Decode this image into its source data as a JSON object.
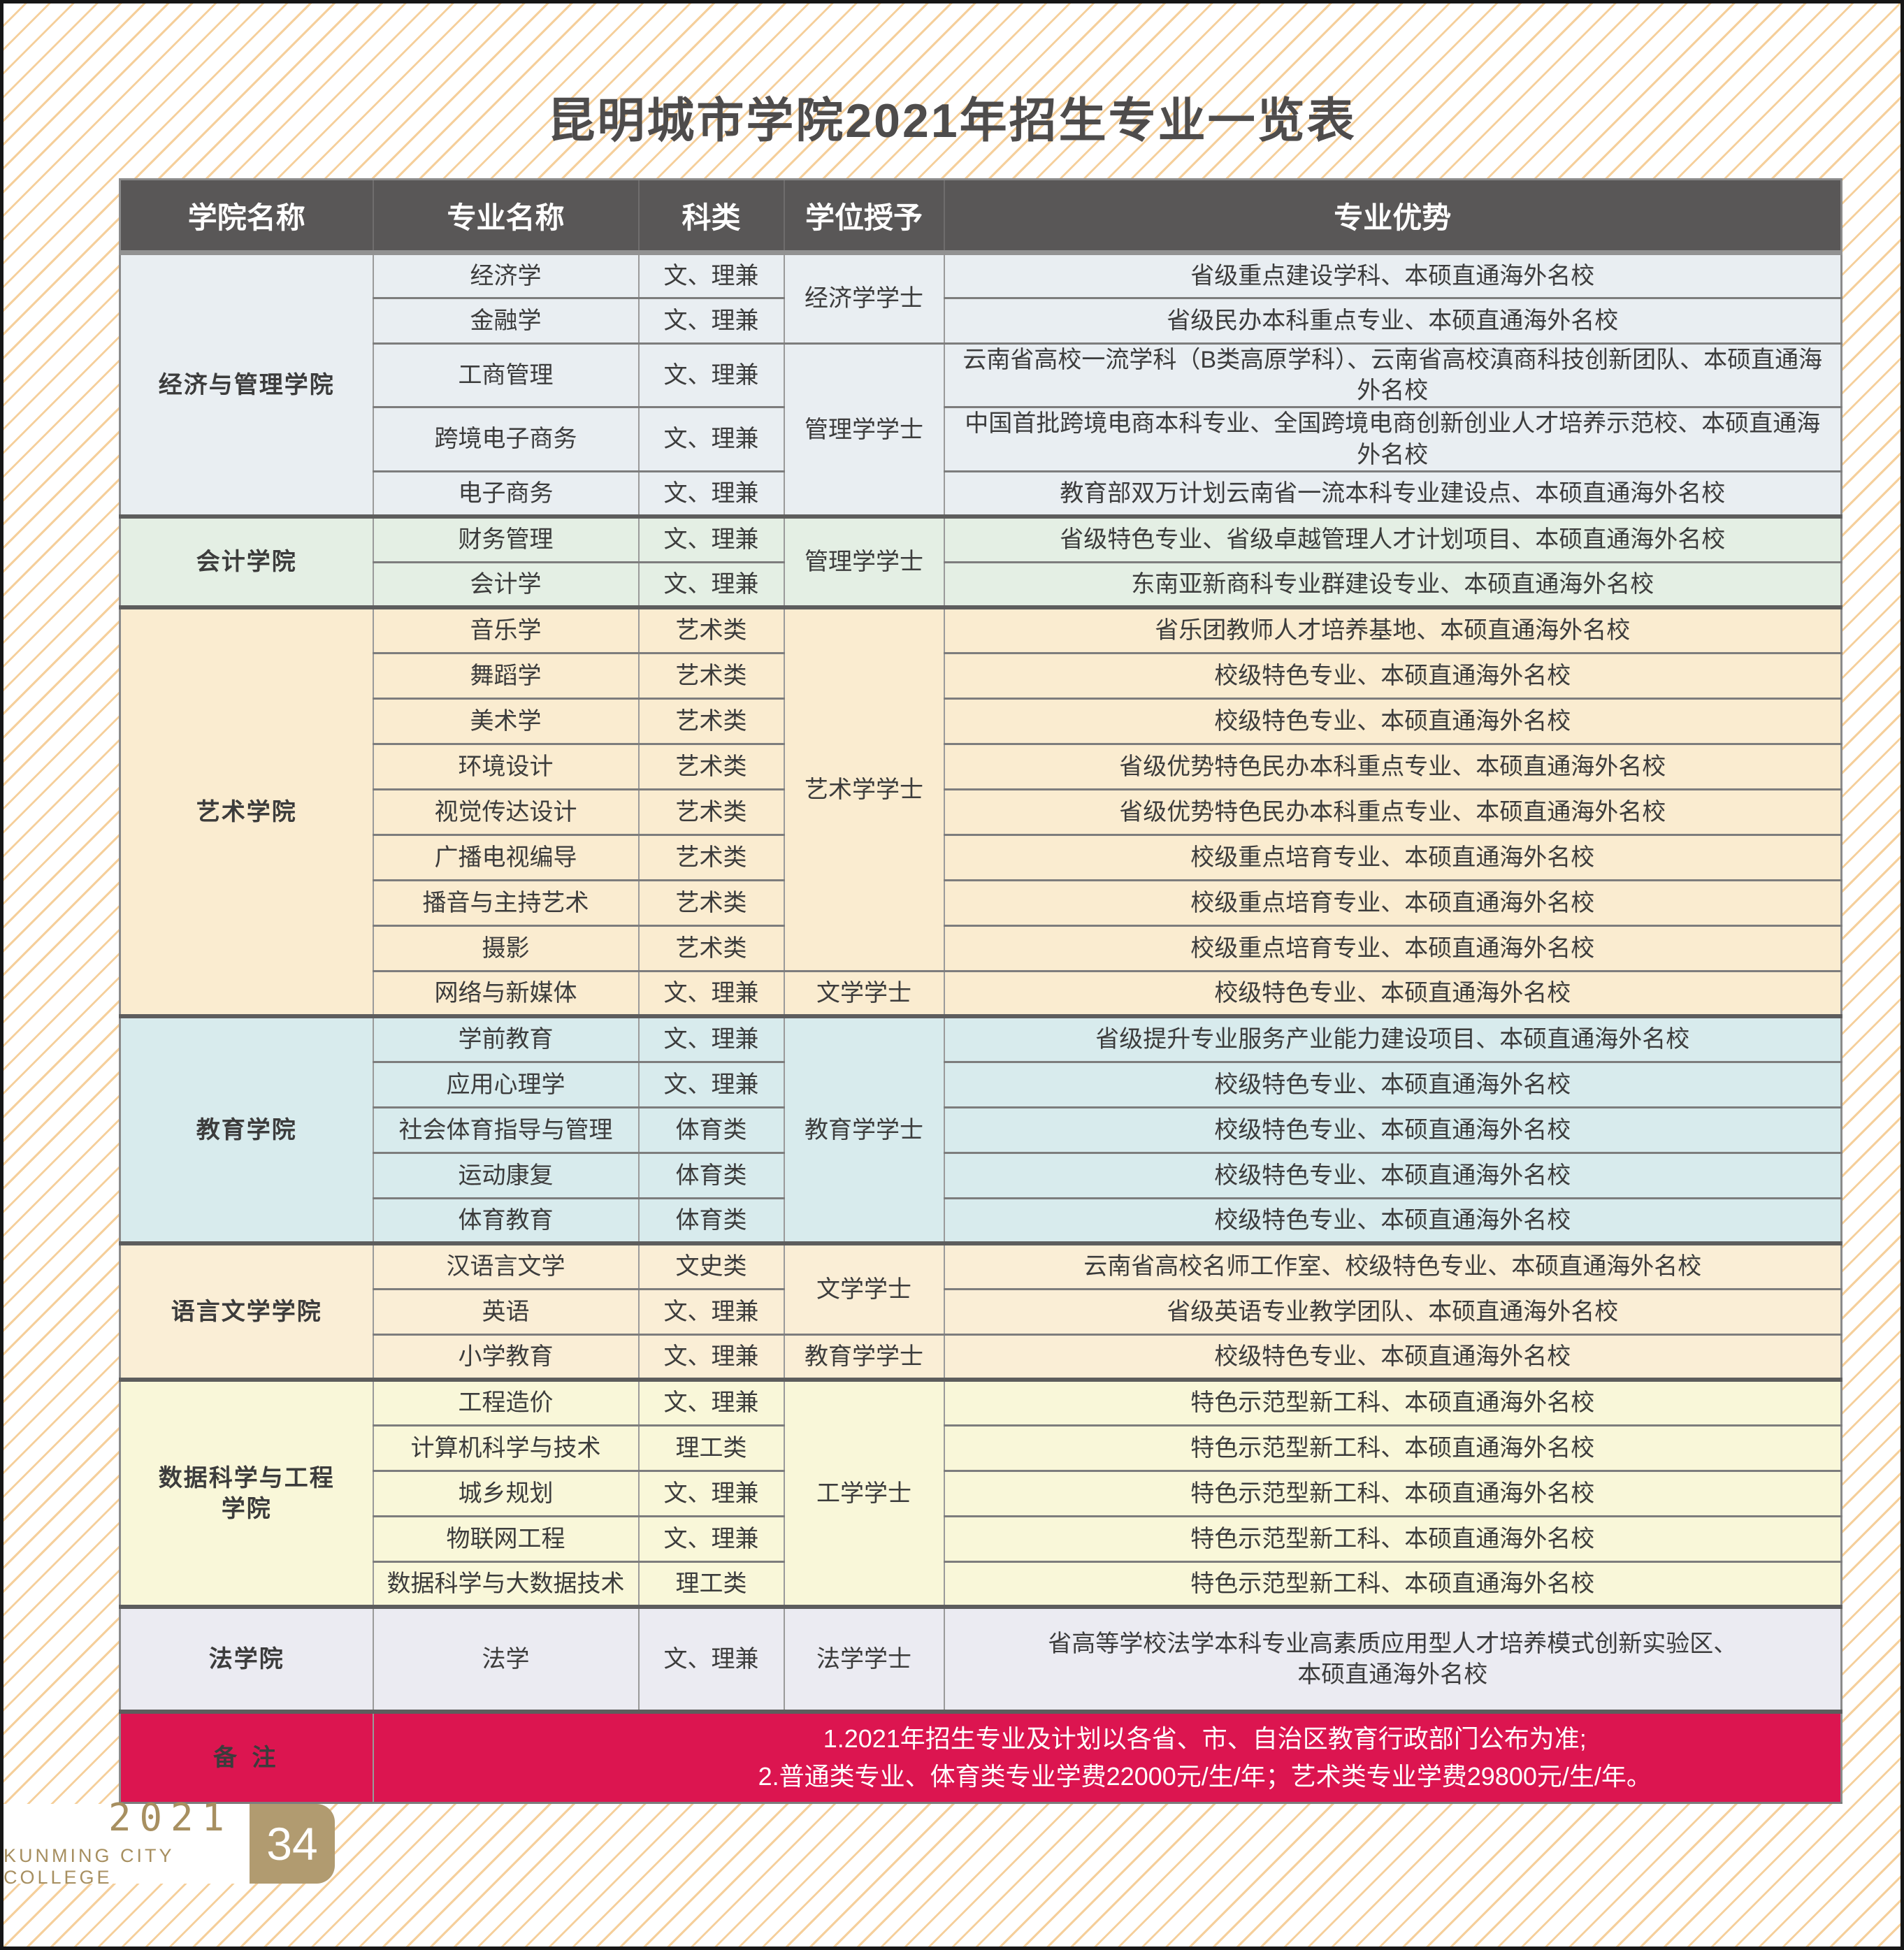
{
  "page": {
    "title": "昆明城市学院2021年招生专业一览表"
  },
  "colors": {
    "header_bg": "#595757",
    "note_bg": "#dc1550",
    "badge_bg": "#b19b70",
    "brand_text": "#a78f60",
    "title_text": "#4e4c4c"
  },
  "table": {
    "headers": [
      "学院名称",
      "专业名称",
      "科类",
      "学位授予",
      "专业优势"
    ],
    "sections": [
      {
        "college": "经济与管理学院",
        "color": "#e9eef2",
        "degrees": [
          {
            "label": "经济学学士",
            "span": 2
          },
          {
            "label": "管理学学士",
            "span": 3
          }
        ],
        "rows": [
          {
            "major": "经济学",
            "category": "文、理兼",
            "advantage": "省级重点建设学科、本硕直通海外名校"
          },
          {
            "major": "金融学",
            "category": "文、理兼",
            "advantage": "省级民办本科重点专业、本硕直通海外名校"
          },
          {
            "major": "工商管理",
            "category": "文、理兼",
            "advantage": "云南省高校一流学科（B类高原学科）、云南省高校滇商科技创新团队、本硕直通海外名校"
          },
          {
            "major": "跨境电子商务",
            "category": "文、理兼",
            "advantage": "中国首批跨境电商本科专业、全国跨境电商创新创业人才培养示范校、本硕直通海外名校"
          },
          {
            "major": "电子商务",
            "category": "文、理兼",
            "advantage": "教育部双万计划云南省一流本科专业建设点、本硕直通海外名校"
          }
        ]
      },
      {
        "college": "会计学院",
        "color": "#e4efe4",
        "degrees": [
          {
            "label": "管理学学士",
            "span": 2
          }
        ],
        "rows": [
          {
            "major": "财务管理",
            "category": "文、理兼",
            "advantage": "省级特色专业、省级卓越管理人才计划项目、本硕直通海外名校"
          },
          {
            "major": "会计学",
            "category": "文、理兼",
            "advantage": "东南亚新商科专业群建设专业、本硕直通海外名校"
          }
        ]
      },
      {
        "college": "艺术学院",
        "color": "#faecd0",
        "degrees": [
          {
            "label": "艺术学学士",
            "span": 8
          },
          {
            "label": "文学学士",
            "span": 1
          }
        ],
        "rows": [
          {
            "major": "音乐学",
            "category": "艺术类",
            "advantage": "省乐团教师人才培养基地、本硕直通海外名校"
          },
          {
            "major": "舞蹈学",
            "category": "艺术类",
            "advantage": "校级特色专业、本硕直通海外名校"
          },
          {
            "major": "美术学",
            "category": "艺术类",
            "advantage": "校级特色专业、本硕直通海外名校"
          },
          {
            "major": "环境设计",
            "category": "艺术类",
            "advantage": "省级优势特色民办本科重点专业、本硕直通海外名校"
          },
          {
            "major": "视觉传达设计",
            "category": "艺术类",
            "advantage": "省级优势特色民办本科重点专业、本硕直通海外名校"
          },
          {
            "major": "广播电视编导",
            "category": "艺术类",
            "advantage": "校级重点培育专业、本硕直通海外名校"
          },
          {
            "major": "播音与主持艺术",
            "category": "艺术类",
            "advantage": "校级重点培育专业、本硕直通海外名校"
          },
          {
            "major": "摄影",
            "category": "艺术类",
            "advantage": "校级重点培育专业、本硕直通海外名校"
          },
          {
            "major": "网络与新媒体",
            "category": "文、理兼",
            "advantage": "校级特色专业、本硕直通海外名校"
          }
        ]
      },
      {
        "college": "教育学院",
        "color": "#d8ebed",
        "degrees": [
          {
            "label": "教育学学士",
            "span": 5
          }
        ],
        "rows": [
          {
            "major": "学前教育",
            "category": "文、理兼",
            "advantage": "省级提升专业服务产业能力建设项目、本硕直通海外名校"
          },
          {
            "major": "应用心理学",
            "category": "文、理兼",
            "advantage": "校级特色专业、本硕直通海外名校"
          },
          {
            "major": "社会体育指导与管理",
            "category": "体育类",
            "advantage": "校级特色专业、本硕直通海外名校"
          },
          {
            "major": "运动康复",
            "category": "体育类",
            "advantage": "校级特色专业、本硕直通海外名校"
          },
          {
            "major": "体育教育",
            "category": "体育类",
            "advantage": "校级特色专业、本硕直通海外名校"
          }
        ]
      },
      {
        "college": "语言文学学院",
        "color": "#faeed6",
        "degrees": [
          {
            "label": "文学学士",
            "span": 2
          },
          {
            "label": "教育学学士",
            "span": 1
          }
        ],
        "rows": [
          {
            "major": "汉语言文学",
            "category": "文史类",
            "advantage": "云南省高校名师工作室、校级特色专业、本硕直通海外名校"
          },
          {
            "major": "英语",
            "category": "文、理兼",
            "advantage": "省级英语专业教学团队、本硕直通海外名校"
          },
          {
            "major": "小学教育",
            "category": "文、理兼",
            "advantage": "校级特色专业、本硕直通海外名校"
          }
        ]
      },
      {
        "college": "数据科学与工程\n学院",
        "color": "#f9f7d9",
        "degrees": [
          {
            "label": "工学学士",
            "span": 5
          }
        ],
        "rows": [
          {
            "major": "工程造价",
            "category": "文、理兼",
            "advantage": "特色示范型新工科、本硕直通海外名校"
          },
          {
            "major": "计算机科学与技术",
            "category": "理工类",
            "advantage": "特色示范型新工科、本硕直通海外名校"
          },
          {
            "major": "城乡规划",
            "category": "文、理兼",
            "advantage": "特色示范型新工科、本硕直通海外名校"
          },
          {
            "major": "物联网工程",
            "category": "文、理兼",
            "advantage": "特色示范型新工科、本硕直通海外名校"
          },
          {
            "major": "数据科学与大数据技术",
            "category": "理工类",
            "advantage": "特色示范型新工科、本硕直通海外名校"
          }
        ]
      },
      {
        "college": "法学院",
        "color": "#ebebf2",
        "degrees": [
          {
            "label": "法学学士",
            "span": 1
          }
        ],
        "rows": [
          {
            "major": "法学",
            "category": "文、理兼",
            "advantage": "省高等学校法学本科专业高素质应用型人才培养模式创新实验区、\n本硕直通海外名校"
          }
        ]
      }
    ],
    "note": {
      "label": "备 注",
      "lines": [
        "1.2021年招生专业及计划以各省、市、自治区教育行政部门公布为准;",
        "2.普通类专业、体育类专业学费22000元/生/年；艺术类专业学费29800元/生/年。"
      ]
    }
  },
  "footer": {
    "year": "2021",
    "college_en": "KUNMING CITY COLLEGE",
    "page_number": "34"
  }
}
